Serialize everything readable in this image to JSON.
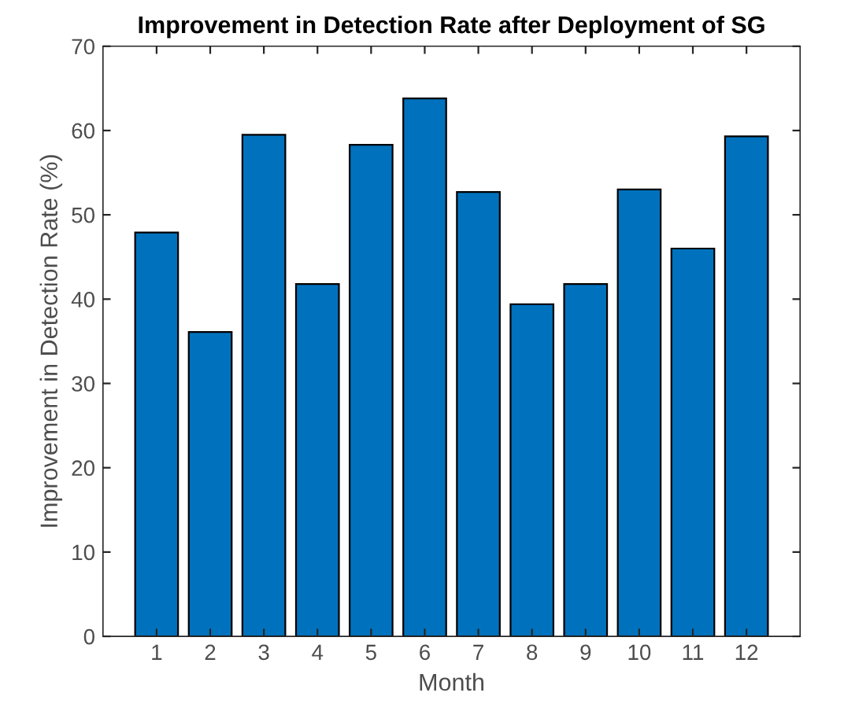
{
  "chart_data": {
    "type": "bar",
    "title": "Improvement in Detection Rate after Deployment of SG",
    "xlabel": "Month",
    "ylabel": "Improvement in Detection Rate (%)",
    "categories": [
      "1",
      "2",
      "3",
      "4",
      "5",
      "6",
      "7",
      "8",
      "9",
      "10",
      "11",
      "12"
    ],
    "values": [
      47.9,
      36.1,
      59.5,
      41.8,
      58.3,
      63.8,
      52.7,
      39.4,
      41.8,
      53.0,
      46.0,
      59.3
    ],
    "color": "#0072bd",
    "ylim": [
      0,
      70
    ],
    "yticks": [
      0,
      10,
      20,
      30,
      40,
      50,
      60,
      70
    ],
    "grid": false,
    "legend": false
  }
}
